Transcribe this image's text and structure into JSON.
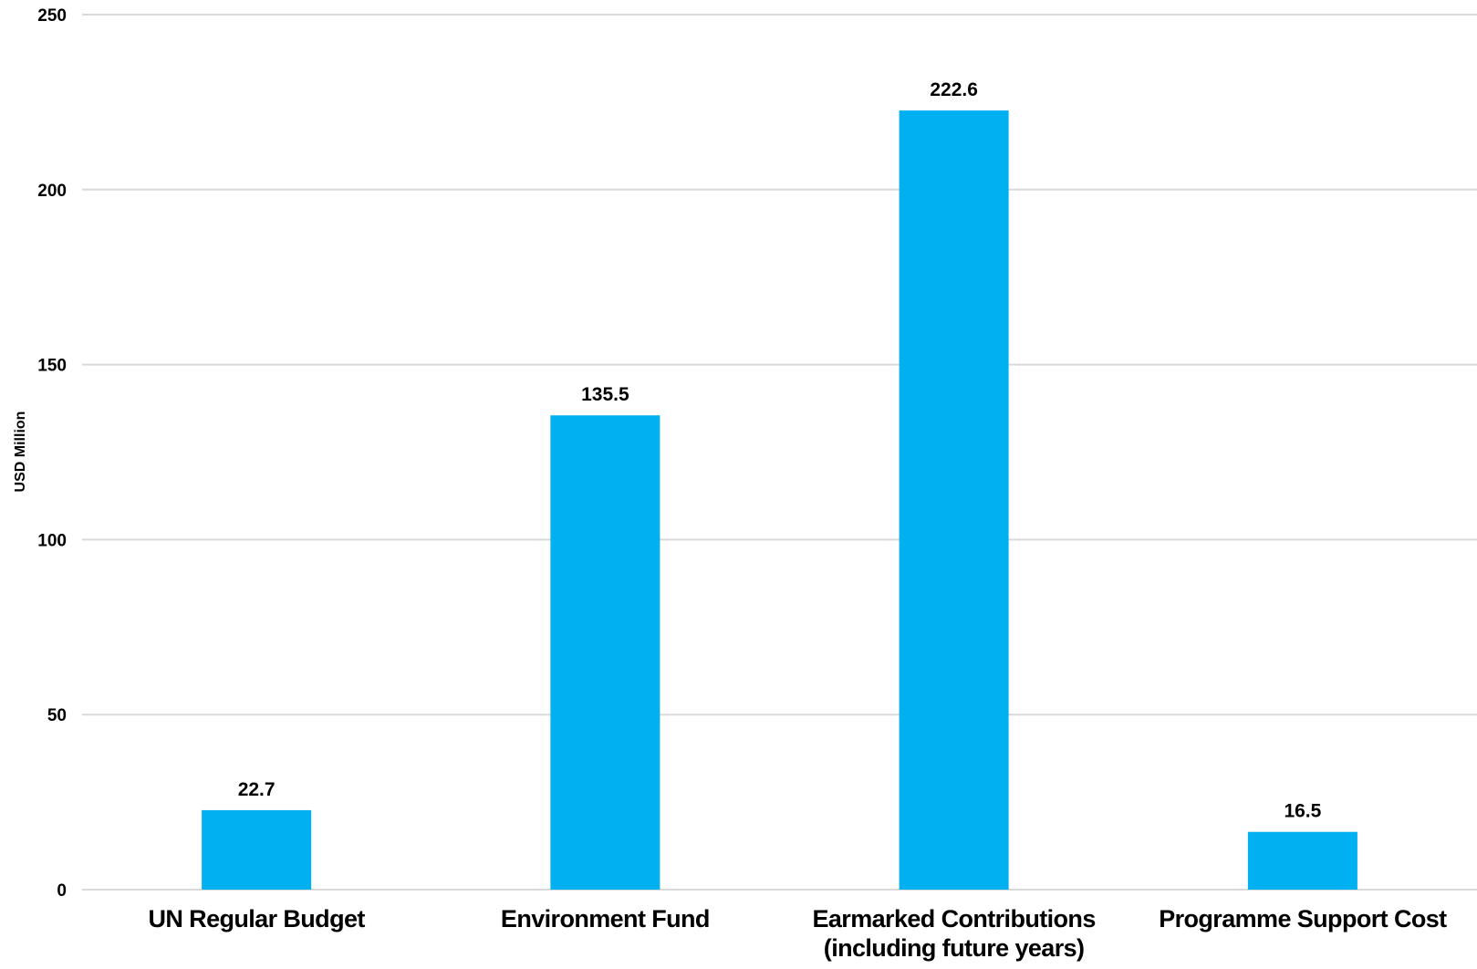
{
  "chart_data": {
    "type": "bar",
    "title": "",
    "xlabel": "",
    "ylabel": "USD Million",
    "ylim": [
      0,
      250
    ],
    "yticks": [
      0,
      50,
      100,
      150,
      200,
      250
    ],
    "grid": true,
    "legend": "none",
    "bar_color": "#00B0F0",
    "gridline_color": "#D9D9D9",
    "categories": [
      [
        "UN Regular Budget"
      ],
      [
        "Environment Fund"
      ],
      [
        "Earmarked Contributions",
        "(including future years)"
      ],
      [
        "Programme Support Cost"
      ]
    ],
    "values": [
      22.7,
      135.5,
      222.6,
      16.5
    ],
    "value_labels": [
      "22.7",
      "135.5",
      "222.6",
      "16.5"
    ]
  }
}
